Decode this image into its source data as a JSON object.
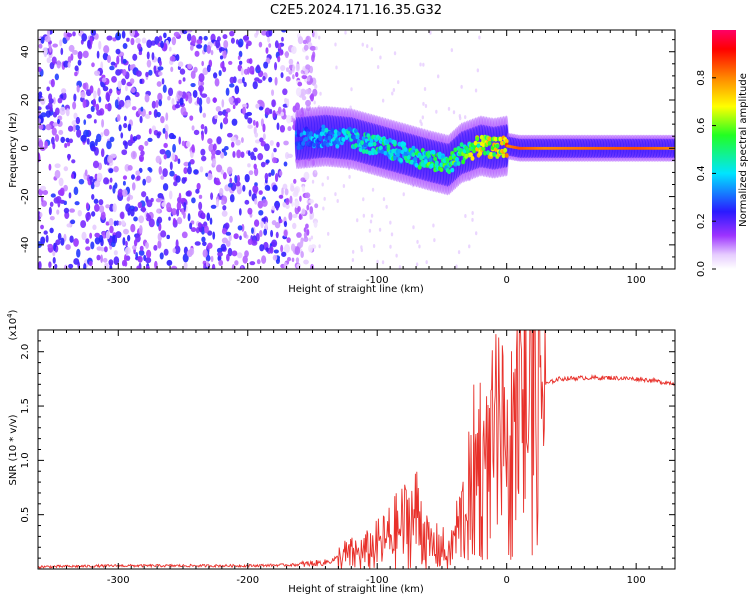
{
  "title": "C2E5.2024.171.16.35.G32",
  "chart_data": [
    {
      "type": "heatmap",
      "xlabel": "Height of straight line (km)",
      "ylabel": "Frequency (Hz)",
      "xlim": [
        -362,
        130
      ],
      "ylim": [
        -50,
        49
      ],
      "xticks": [
        -300,
        -200,
        -100,
        0,
        100
      ],
      "yticks": [
        -40,
        -20,
        0,
        20,
        40
      ],
      "colorbar": {
        "label": "Normalized spectral amplitude",
        "range": [
          0.0,
          1.0
        ],
        "ticks": [
          0.0,
          0.2,
          0.4,
          0.6,
          0.8
        ],
        "colors": [
          "#ffffff",
          "#d9a8ff",
          "#8800ff",
          "#2020ff",
          "#00ffff",
          "#00ff00",
          "#ffff00",
          "#ff8800",
          "#ff0000",
          "#ff0066"
        ]
      },
      "ridge": {
        "description_points_x": [
          -160,
          -140,
          -120,
          -100,
          -80,
          -60,
          -45,
          -35,
          -20,
          -10,
          0,
          10,
          30,
          60,
          100,
          130
        ],
        "frequency_y": [
          4,
          5,
          4,
          1,
          -2,
          -5,
          -7,
          -2,
          1,
          0,
          1,
          0,
          0,
          0,
          0,
          0
        ],
        "amplitude": [
          0.35,
          0.4,
          0.45,
          0.5,
          0.5,
          0.55,
          0.55,
          0.6,
          0.7,
          0.75,
          0.8,
          0.85,
          0.8,
          0.82,
          0.85,
          0.8
        ]
      },
      "noise_region_x": [
        -362,
        -155
      ]
    },
    {
      "type": "line",
      "xlabel": "Height of straight line (km)",
      "ylabel": "SNR (10 * v/v)",
      "multiplier": "(x10",
      "multiplier_exp": "4",
      "multiplier_close": ")",
      "xlim": [
        -362,
        130
      ],
      "ylim": [
        0,
        2.2
      ],
      "xticks": [
        -300,
        -200,
        -100,
        0,
        100
      ],
      "yticks": [
        0.5,
        1.0,
        1.5,
        2.0
      ],
      "ytick_labels": [
        "0.5",
        "1.0",
        "1.5",
        "2.0"
      ],
      "color": "#e8302a",
      "series": [
        {
          "x": [
            -362,
            -300,
            -250,
            -200,
            -160,
            -140,
            -125,
            -110,
            -95,
            -85,
            -75,
            -68,
            -60,
            -50,
            -45,
            -40,
            -30,
            -25,
            -20,
            -15,
            -10,
            -5,
            0,
            5,
            10,
            20,
            30,
            40,
            60,
            80,
            100,
            110,
            120,
            130
          ],
          "y": [
            0.02,
            0.03,
            0.03,
            0.03,
            0.04,
            0.06,
            0.12,
            0.15,
            0.25,
            0.35,
            0.45,
            0.5,
            0.2,
            0.2,
            0.1,
            0.3,
            0.6,
            0.9,
            1.0,
            0.85,
            1.1,
            1.2,
            0.8,
            1.25,
            1.45,
            1.6,
            1.7,
            1.75,
            1.76,
            1.76,
            1.75,
            1.74,
            1.72,
            1.71
          ]
        }
      ]
    }
  ]
}
